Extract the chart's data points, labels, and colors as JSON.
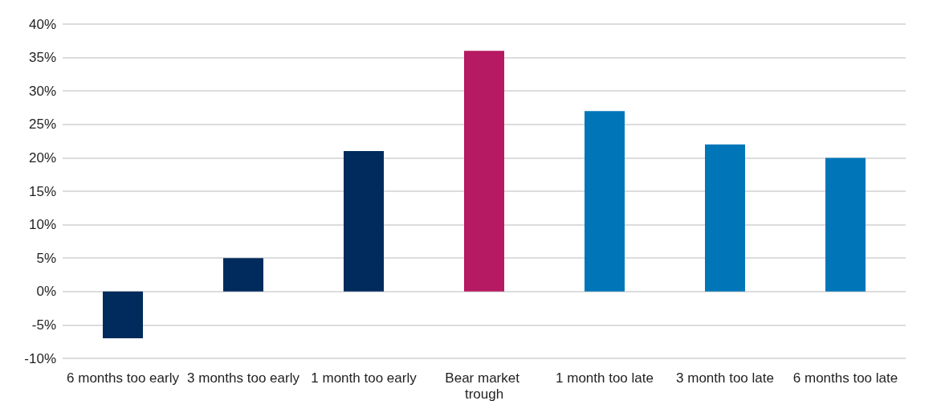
{
  "chart_data": {
    "type": "bar",
    "categories": [
      "6 months too early",
      "3 months too early",
      "1 month too early",
      "Bear market trough",
      "1 month too late",
      "3 month too late",
      "6 months too late"
    ],
    "values": [
      -7,
      5,
      21,
      36,
      27,
      22,
      20
    ],
    "colors": [
      "#002b5c",
      "#002b5c",
      "#002b5c",
      "#b51a62",
      "#0076b9",
      "#0076b9",
      "#0076b9"
    ],
    "ylim": [
      -10,
      40
    ],
    "yticks": [
      {
        "value": -10,
        "label": "-10%"
      },
      {
        "value": -5,
        "label": "-5%"
      },
      {
        "value": 0,
        "label": "0%"
      },
      {
        "value": 5,
        "label": "5%"
      },
      {
        "value": 10,
        "label": "10%"
      },
      {
        "value": 15,
        "label": "15%"
      },
      {
        "value": 20,
        "label": "20%"
      },
      {
        "value": 25,
        "label": "25%"
      },
      {
        "value": 30,
        "label": "30%"
      },
      {
        "value": 35,
        "label": "35%"
      },
      {
        "value": 40,
        "label": "40%"
      }
    ],
    "grid": "y"
  }
}
